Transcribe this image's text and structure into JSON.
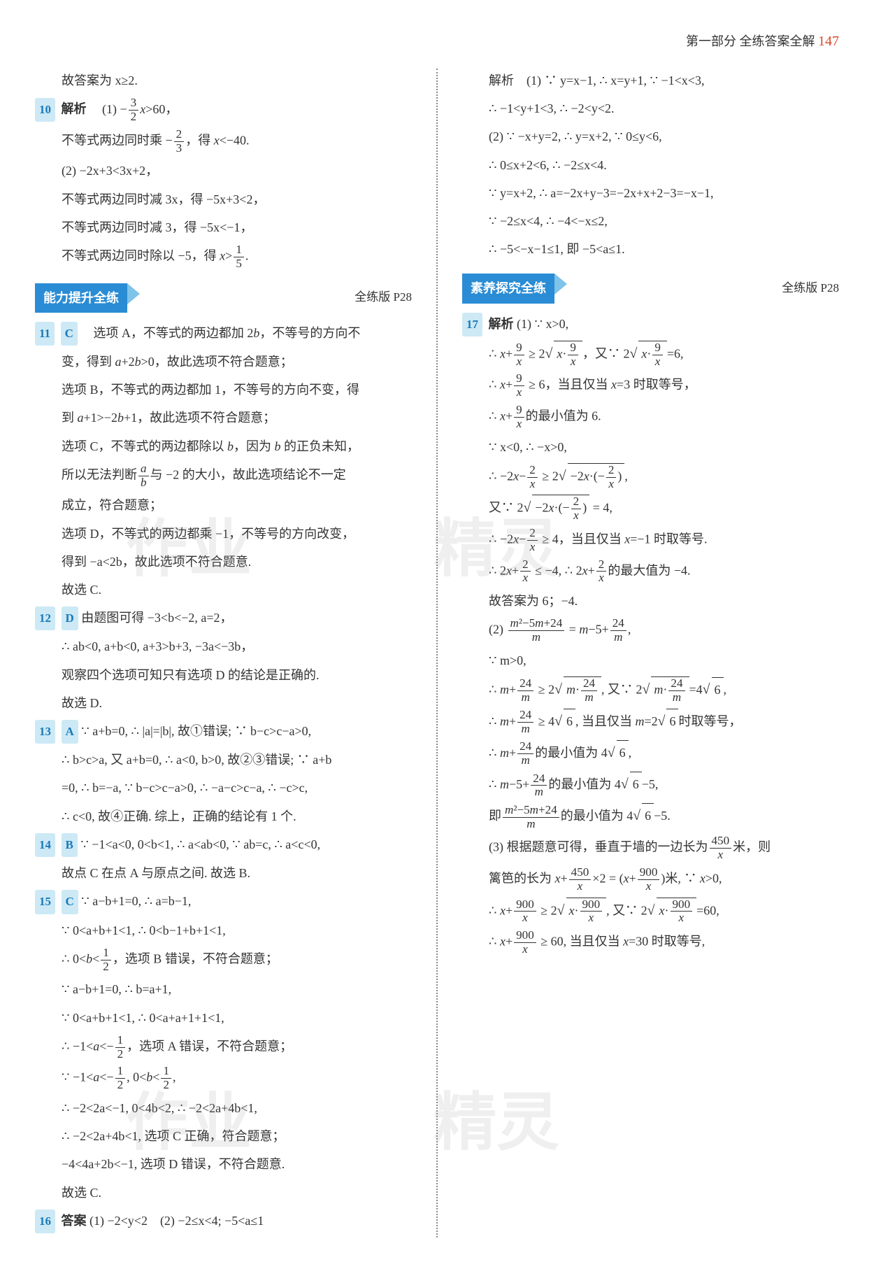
{
  "header": {
    "part": "第一部分",
    "title": "全练答案全解",
    "pagenum": "147"
  },
  "sections": {
    "ability": {
      "label": "能力提升全练",
      "ref": "全练版 P28"
    },
    "explore": {
      "label": "素养探究全练",
      "ref": "全练版 P28"
    }
  },
  "watermarks": {
    "w1": "作业",
    "w2": "精灵",
    "w3": "作业",
    "w4": "精灵"
  },
  "left": {
    "pre9": "故答案为 x≥2.",
    "q10": {
      "num": "10",
      "label": "解析"
    },
    "l10_1": "(1) −(3/2)x>60，",
    "l10_2": "不等式两边同时乘 −(2/3)，得 x<−40.",
    "l10_3": "(2) −2x+3<3x+2，",
    "l10_4": "不等式两边同时减 3x，得 −5x+3<2，",
    "l10_5": "不等式两边同时减 3，得 −5x<−1，",
    "l10_6": "不等式两边同时除以 −5，得 x>1/5.",
    "q11": {
      "num": "11",
      "ans": "C"
    },
    "l11_1": "选项 A，不等式的两边都加 2b，不等号的方向不变，得到 a+2b>0，故此选项不符合题意；",
    "l11_2": "选项 B，不等式的两边都加 1，不等号的方向不变，得到 a+1>−2b+1，故此选项不符合题意；",
    "l11_3": "选项 C，不等式的两边都除以 b，因为 b 的正负未知，",
    "l11_4": "所以无法判断 a/b 与 −2 的大小，故此选项结论不一定",
    "l11_5": "成立，符合题意；",
    "l11_6": "选项 D，不等式的两边都乘 −1，不等号的方向改变，",
    "l11_7": "得到 −a<2b，故此选项不符合题意.",
    "l11_8": "故选 C.",
    "q12": {
      "num": "12",
      "ans": "D"
    },
    "l12_1": "由题图可得 −3<b<−2, a=2，",
    "l12_2": "∴ ab<0, a+b<0, a+3>b+3, −3a<−3b，",
    "l12_3": "观察四个选项可知只有选项 D 的结论是正确的.",
    "l12_4": "故选 D.",
    "q13": {
      "num": "13",
      "ans": "A"
    },
    "l13_1": "∵ a+b=0, ∴ |a|=|b|, 故①错误; ∵ b−c>c−a>0,",
    "l13_2": "∴ b>c>a, 又 a+b=0, ∴ a<0, b>0, 故②③错误; ∵ a+b",
    "l13_3": "=0, ∴ b=−a, ∵ b−c>c−a>0, ∴ −a−c>c−a, ∴ −c>c,",
    "l13_4": "∴ c<0, 故④正确. 综上，正确的结论有 1 个.",
    "q14": {
      "num": "14",
      "ans": "B"
    },
    "l14_1": "∵ −1<a<0, 0<b<1, ∴ a<ab<0, ∵ ab=c, ∴ a<c<0,",
    "l14_2": "故点 C 在点 A 与原点之间. 故选 B.",
    "q15": {
      "num": "15",
      "ans": "C"
    },
    "l15_1": "∵ a−b+1=0, ∴ a=b−1,",
    "l15_2": "∵ 0<a+b+1<1, ∴ 0<b−1+b+1<1,",
    "l15_3": "∴ 0<b<1/2, 选项 B 错误，不符合题意；",
    "l15_4": "∵ a−b+1=0, ∴ b=a+1,",
    "l15_5": "∵ 0<a+b+1<1, ∴ 0<a+a+1+1<1,",
    "l15_6": "∴ −1<a<−1/2, 选项 A 错误，不符合题意；",
    "l15_7": "∵ −1<a<−1/2, 0<b<1/2,",
    "l15_8": "∴ −2<2a<−1, 0<4b<2, ∴ −2<2a+4b<1,",
    "l15_9": "∴ −2<2a+4b<1, 选项 C 正确，符合题意；",
    "l15_10": "−4<4a+2b<−1, 选项 D 错误，不符合题意.",
    "l15_11": "故选 C.",
    "q16": {
      "num": "16",
      "label": "答案"
    },
    "l16_1": "(1) −2<y<2　(2) −2≤x<4; −5<a≤1"
  },
  "right": {
    "l16a_0": "解析　(1) ∵ y=x−1, ∴ x=y+1, ∵ −1<x<3,",
    "l16a_1": "∴ −1<y+1<3, ∴ −2<y<2.",
    "l16a_2": "(2) ∵ −x+y=2, ∴ y=x+2, ∵ 0≤y<6,",
    "l16a_3": "∴ 0≤x+2<6, ∴ −2≤x<4.",
    "l16a_4": "∵ y=x+2, ∴ a=−2x+y−3=−2x+x+2−3=−x−1,",
    "l16a_5": "∵ −2≤x<4, ∴ −4<−x≤2,",
    "l16a_6": "∴ −5<−x−1≤1, 即 −5<a≤1.",
    "q17": {
      "num": "17",
      "label": "解析"
    },
    "l17_1": "(1) ∵ x>0,",
    "l17_2": "∴ x+9/x ≥ 2√(x·9/x), 又∵ 2√(x·9/x)=6,",
    "l17_3": "∴ x+9/x ≥ 6, 当且仅当 x=3 时取等号，",
    "l17_4": "∴ x+9/x 的最小值为 6.",
    "l17_5": "∵ x<0, ∴ −x>0,",
    "l17_6": "∴ −2x−2/x ≥ 2√(−2x·(−2/x)),",
    "l17_7": "又∵ 2√(−2x·(−2/x)) = 4,",
    "l17_8": "∴ −2x−2/x ≥ 4, 当且仅当 x=−1 时取等号.",
    "l17_9": "∴ 2x+2/x ≤ −4, ∴ 2x+2/x 的最大值为 −4.",
    "l17_10": "故答案为 6；−4.",
    "l17_11": "(2) (m²−5m+24)/m = m−5+24/m,",
    "l17_12": "∵ m>0,",
    "l17_13": "∴ m+24/m ≥ 2√(m·24/m), 又∵ 2√(m·24/m)=4√6,",
    "l17_14": "∴ m+24/m ≥ 4√6, 当且仅当 m=2√6 时取等号，",
    "l17_15": "∴ m+24/m 的最小值为 4√6,",
    "l17_16": "∴ m−5+24/m 的最小值为 4√6−5,",
    "l17_17": "即 (m²−5m+24)/m 的最小值为 4√6−5.",
    "l17_18": "(3) 根据题意可得，垂直于墙的一边长为 450/x 米，则",
    "l17_19": "篱笆的长为 x+450/x ×2 = (x+900/x)米, ∵ x>0,",
    "l17_20": "∴ x+900/x ≥ 2√(x·900/x), 又∵ 2√(x·900/x)=60,",
    "l17_21": "∴ x+900/x ≥ 60, 当且仅当 x=30 时取等号,"
  }
}
